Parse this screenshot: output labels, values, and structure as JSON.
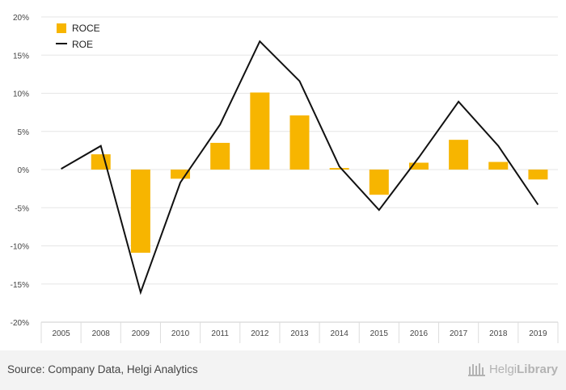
{
  "chart_data": {
    "type": "bar",
    "categories": [
      "2005",
      "2008",
      "2009",
      "2010",
      "2011",
      "2012",
      "2013",
      "2014",
      "2015",
      "2016",
      "2017",
      "2018",
      "2019"
    ],
    "series": [
      {
        "name": "ROCE",
        "kind": "bar",
        "color": "#f7b500",
        "values": [
          null,
          2.0,
          -10.9,
          -1.2,
          3.5,
          10.1,
          7.1,
          0.2,
          -3.3,
          0.9,
          3.9,
          1.0,
          -1.3
        ]
      },
      {
        "name": "ROE",
        "kind": "line",
        "color": "#111111",
        "values": [
          0.1,
          3.1,
          -16.1,
          -1.7,
          5.9,
          16.8,
          11.6,
          0.4,
          -5.3,
          1.6,
          8.9,
          3.1,
          -4.6
        ]
      }
    ],
    "ylim": [
      -20,
      20
    ],
    "yticks": [
      -20,
      -15,
      -10,
      -5,
      0,
      5,
      10,
      15,
      20
    ],
    "ytick_labels": [
      "-20%",
      "-15%",
      "-10%",
      "-5%",
      "0%",
      "5%",
      "10%",
      "15%",
      "20%"
    ],
    "legend_position": "top-left",
    "grid": true
  },
  "footer": {
    "source": "Source: Company Data, Helgi Analytics",
    "brand_light": "Helgi",
    "brand_bold": "Library"
  }
}
